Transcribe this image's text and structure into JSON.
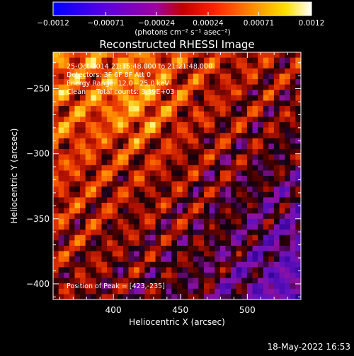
{
  "chart_data": {
    "type": "heatmap",
    "title": "Reconstructed RHESSI Image",
    "xlabel": "Heliocentric X (arcsec)",
    "ylabel": "Heliocentric Y (arcsec)",
    "xlim": [
      355,
      540
    ],
    "ylim": [
      -412,
      -222
    ],
    "x_ticks": [
      400,
      450,
      500
    ],
    "y_ticks": [
      -250,
      -300,
      -350,
      -400
    ],
    "x_tick_labels": [
      "400",
      "450",
      "500"
    ],
    "y_tick_labels": [
      "−250",
      "−300",
      "−350",
      "−400"
    ],
    "colorbar": {
      "range": [
        -0.0012,
        0.0012
      ],
      "tick_labels": [
        "−0.0012",
        "−0.00071",
        "−0.00024",
        "0.00024",
        "0.00071",
        "0.0012"
      ],
      "unit_label": "(photons cm⁻² s⁻¹ asec⁻²)"
    },
    "annotations": [
      "25-Oct-2014 21:15:48.000 to 21:21:48.000",
      "Detectors: 3F 6F 8F Att 0",
      "Energy Range: 12.0 - 25.0 keV",
      "Clean     Total counts: 3.39E+03"
    ],
    "peak_label": "Position of Peak = [423,-235]",
    "grid": false
  },
  "footer": {
    "timestamp": "18-May-2022 16:53"
  },
  "colors": {
    "background": "#000000",
    "text": "#ffffff"
  }
}
